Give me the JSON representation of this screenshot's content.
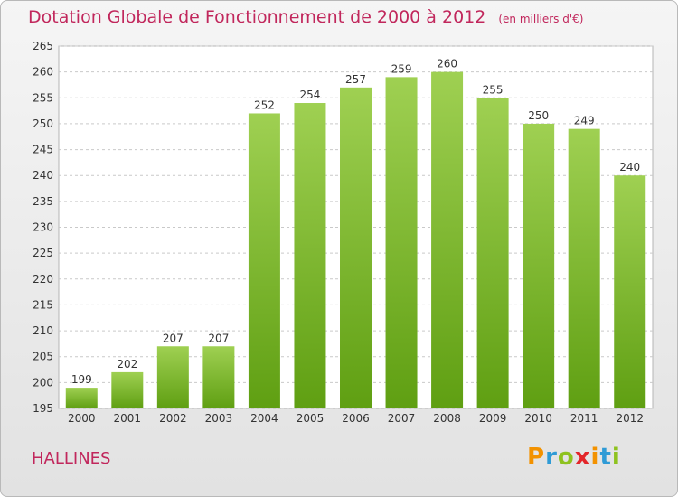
{
  "title": "Dotation Globale de Fonctionnement de 2000 à 2012",
  "subtitle": "(en milliers d'€)",
  "commune": "HALLINES",
  "logo": {
    "letters": [
      "P",
      "r",
      "o",
      "x",
      "i",
      "t",
      "i"
    ],
    "colors": [
      "#f39200",
      "#2f9bd6",
      "#8ec21f",
      "#e3262a",
      "#f39200",
      "#2f9bd6",
      "#8ec21f"
    ]
  },
  "colors": {
    "title": "#c1275c",
    "bar_top": "#9fd052",
    "bar_bottom": "#5f9f12",
    "grid": "#c9c9c9"
  },
  "chart_data": {
    "type": "bar",
    "categories": [
      "2000",
      "2001",
      "2002",
      "2003",
      "2004",
      "2005",
      "2006",
      "2007",
      "2008",
      "2009",
      "2010",
      "2011",
      "2012"
    ],
    "values": [
      199,
      202,
      207,
      207,
      252,
      254,
      257,
      259,
      260,
      255,
      250,
      249,
      240
    ],
    "ylim": [
      195,
      265
    ],
    "yticks": [
      195,
      200,
      205,
      210,
      215,
      220,
      225,
      230,
      235,
      240,
      245,
      250,
      255,
      260,
      265
    ],
    "grid": true,
    "data_labels": true
  }
}
